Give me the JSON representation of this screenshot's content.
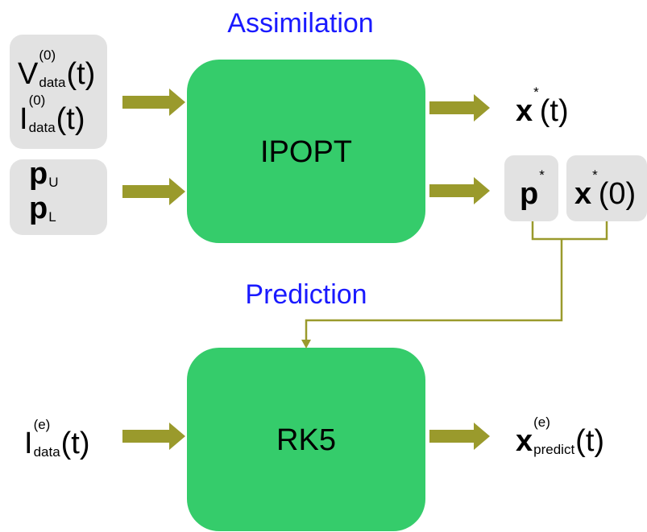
{
  "assimilation": {
    "title": "Assimilation",
    "solver": "IPOPT",
    "inputs": [
      {
        "base": "V",
        "sup": "(0)",
        "sub": "data",
        "arg": "(t)"
      },
      {
        "base": "I",
        "sup": "(0)",
        "sub": "data",
        "arg": "(t)"
      },
      {
        "base": "p",
        "sub": "U"
      },
      {
        "base": "p",
        "sub": "L"
      }
    ],
    "outputs": [
      {
        "base": "x",
        "sup": "*",
        "arg": "(t)"
      },
      {
        "base": "p",
        "sup": "*"
      },
      {
        "base": "x",
        "sup": "*",
        "arg": "(0)"
      }
    ]
  },
  "prediction": {
    "title": "Prediction",
    "solver": "RK5",
    "input": {
      "base": "I",
      "sup": "(e)",
      "sub": "data",
      "arg": "(t)"
    },
    "output": {
      "base": "x",
      "sup": "(e)",
      "sub": "predict",
      "arg": "(t)"
    }
  }
}
